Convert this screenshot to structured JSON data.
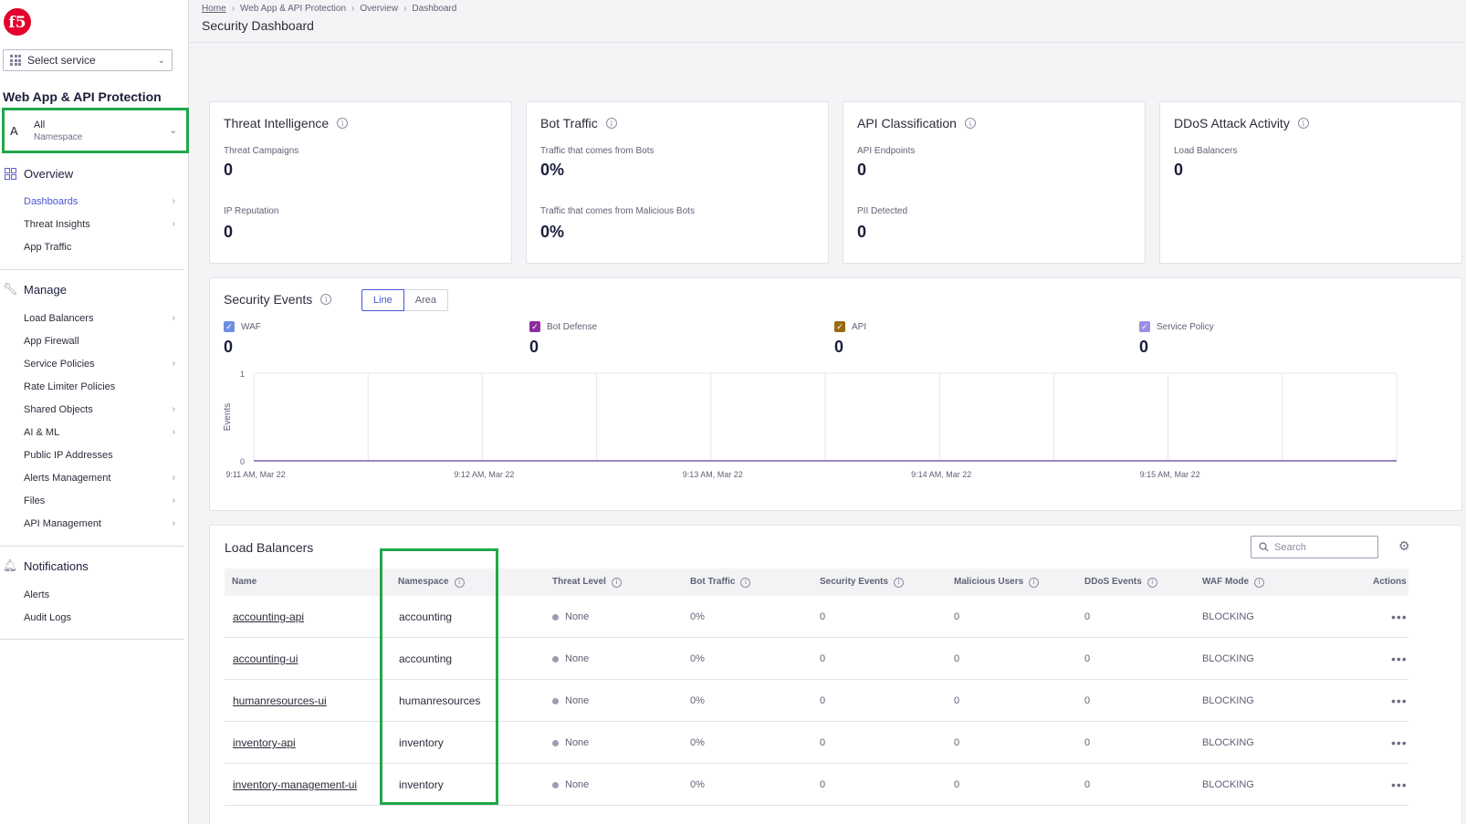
{
  "sidebar": {
    "logo": "f5",
    "select_service": "Select service",
    "product_title": "Web App & API Protection",
    "namespace": {
      "avatar": "A",
      "value": "All",
      "label": "Namespace"
    },
    "sections": [
      {
        "title": "Overview",
        "icon": "grid-icon",
        "items": [
          {
            "label": "Dashboards",
            "active": true,
            "chevron": true
          },
          {
            "label": "Threat Insights",
            "active": false,
            "chevron": true
          },
          {
            "label": "App Traffic",
            "active": false,
            "chevron": false
          }
        ]
      },
      {
        "title": "Manage",
        "icon": "wrench-icon",
        "items": [
          {
            "label": "Load Balancers",
            "chevron": true
          },
          {
            "label": "App Firewall",
            "chevron": false
          },
          {
            "label": "Service Policies",
            "chevron": true
          },
          {
            "label": "Rate Limiter Policies",
            "chevron": false
          },
          {
            "label": "Shared Objects",
            "chevron": true
          },
          {
            "label": "AI & ML",
            "chevron": true
          },
          {
            "label": "Public IP Addresses",
            "chevron": false
          },
          {
            "label": "Alerts Management",
            "chevron": true
          },
          {
            "label": "Files",
            "chevron": true
          },
          {
            "label": "API Management",
            "chevron": true
          }
        ]
      },
      {
        "title": "Notifications",
        "icon": "bell-icon",
        "items": [
          {
            "label": "Alerts",
            "chevron": false
          },
          {
            "label": "Audit Logs",
            "chevron": false
          }
        ]
      }
    ]
  },
  "breadcrumb": [
    "Home",
    "Web App & API Protection",
    "Overview",
    "Dashboard"
  ],
  "page_title": "Security Dashboard",
  "cards": {
    "threat": {
      "title": "Threat Intelligence",
      "m1_label": "Threat Campaigns",
      "m1_value": "0",
      "m2_label": "IP Reputation",
      "m2_value": "0"
    },
    "bot": {
      "title": "Bot Traffic",
      "m1_label": "Traffic that comes from Bots",
      "m1_value": "0%",
      "m2_label": "Traffic that comes from Malicious Bots",
      "m2_value": "0%"
    },
    "api": {
      "title": "API Classification",
      "m1_label": "API Endpoints",
      "m1_value": "0",
      "m2_label": "PII Detected",
      "m2_value": "0"
    },
    "ddos": {
      "title": "DDoS Attack Activity",
      "m1_label": "Load Balancers",
      "m1_value": "0"
    }
  },
  "security_events": {
    "title": "Security Events",
    "toggle": {
      "line": "Line",
      "area": "Area"
    },
    "legend": [
      {
        "name": "WAF",
        "value": "0",
        "color": "#6e8fe0"
      },
      {
        "name": "Bot Defense",
        "value": "0",
        "color": "#8e2da0"
      },
      {
        "name": "API",
        "value": "0",
        "color": "#9a6a12"
      },
      {
        "name": "Service Policy",
        "value": "0",
        "color": "#9a8ee6"
      }
    ]
  },
  "chart_data": {
    "type": "line",
    "ylabel": "Events",
    "ylim": [
      0,
      1
    ],
    "yticks": [
      "1",
      "0"
    ],
    "x": [
      "9:11 AM, Mar 22",
      "9:12 AM, Mar 22",
      "9:13 AM, Mar 22",
      "9:14 AM, Mar 22",
      "9:15 AM, Mar 22"
    ],
    "series": [
      {
        "name": "WAF",
        "values": [
          0,
          0,
          0,
          0,
          0
        ]
      },
      {
        "name": "Bot Defense",
        "values": [
          0,
          0,
          0,
          0,
          0
        ]
      },
      {
        "name": "API",
        "values": [
          0,
          0,
          0,
          0,
          0
        ]
      },
      {
        "name": "Service Policy",
        "values": [
          0,
          0,
          0,
          0,
          0
        ]
      }
    ],
    "grid": true
  },
  "load_balancers": {
    "title": "Load Balancers",
    "search_placeholder": "Search",
    "columns": [
      "Name",
      "Namespace",
      "Threat Level",
      "Bot Traffic",
      "Security Events",
      "Malicious Users",
      "DDoS Events",
      "WAF Mode",
      "Actions"
    ],
    "rows": [
      {
        "name": "accounting-api",
        "namespace": "accounting",
        "threat": "None",
        "bot": "0%",
        "sec": "0",
        "mal": "0",
        "ddos": "0",
        "waf": "BLOCKING",
        "actions": "•••"
      },
      {
        "name": "accounting-ui",
        "namespace": "accounting",
        "threat": "None",
        "bot": "0%",
        "sec": "0",
        "mal": "0",
        "ddos": "0",
        "waf": "BLOCKING",
        "actions": "•••"
      },
      {
        "name": "humanresources-ui",
        "namespace": "humanresources",
        "threat": "None",
        "bot": "0%",
        "sec": "0",
        "mal": "0",
        "ddos": "0",
        "waf": "BLOCKING",
        "actions": "•••"
      },
      {
        "name": "inventory-api",
        "namespace": "inventory",
        "threat": "None",
        "bot": "0%",
        "sec": "0",
        "mal": "0",
        "ddos": "0",
        "waf": "BLOCKING",
        "actions": "•••"
      },
      {
        "name": "inventory-management-ui",
        "namespace": "inventory",
        "threat": "None",
        "bot": "0%",
        "sec": "0",
        "mal": "0",
        "ddos": "0",
        "waf": "BLOCKING",
        "actions": "•••"
      }
    ]
  }
}
